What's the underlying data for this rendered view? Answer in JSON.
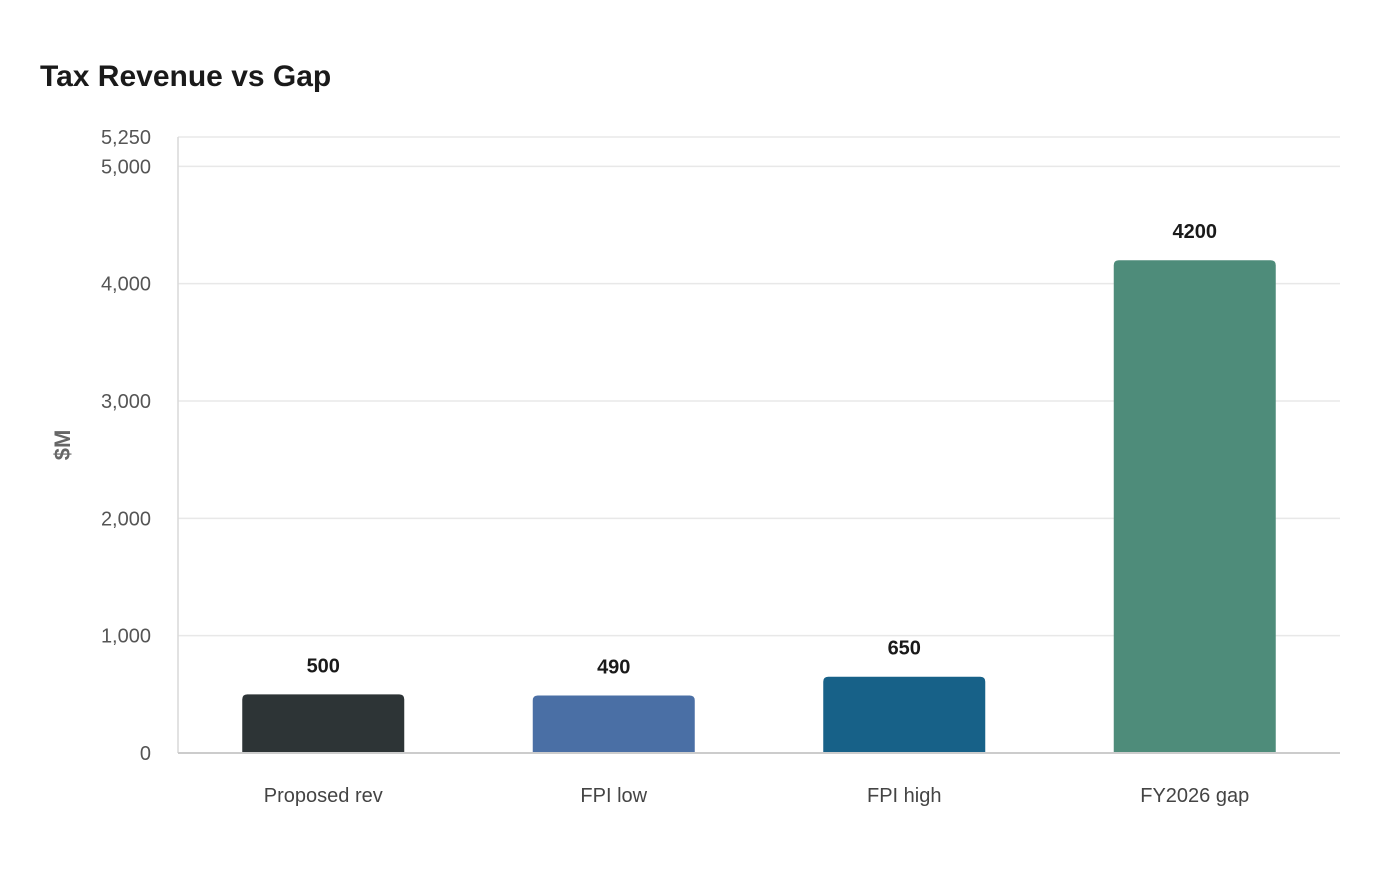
{
  "chart_data": {
    "type": "bar",
    "title": "Tax Revenue vs Gap",
    "xlabel": "",
    "ylabel": "$M",
    "categories": [
      "Proposed rev",
      "FPI low",
      "FPI high",
      "FY2026 gap"
    ],
    "values": [
      500,
      490,
      650,
      4200
    ],
    "data_labels": [
      "500",
      "490",
      "650",
      "4200"
    ],
    "colors": [
      "#2d3436",
      "#4a6fa5",
      "#176188",
      "#4e8c7a"
    ],
    "ylim": [
      0,
      5250
    ],
    "yticks": [
      0,
      1000,
      2000,
      3000,
      4000,
      5000,
      5250
    ],
    "ytick_labels": [
      "0",
      "1,000",
      "2,000",
      "3,000",
      "4,000",
      "5,000",
      "5,250"
    ],
    "grid": true,
    "legend": "none"
  }
}
